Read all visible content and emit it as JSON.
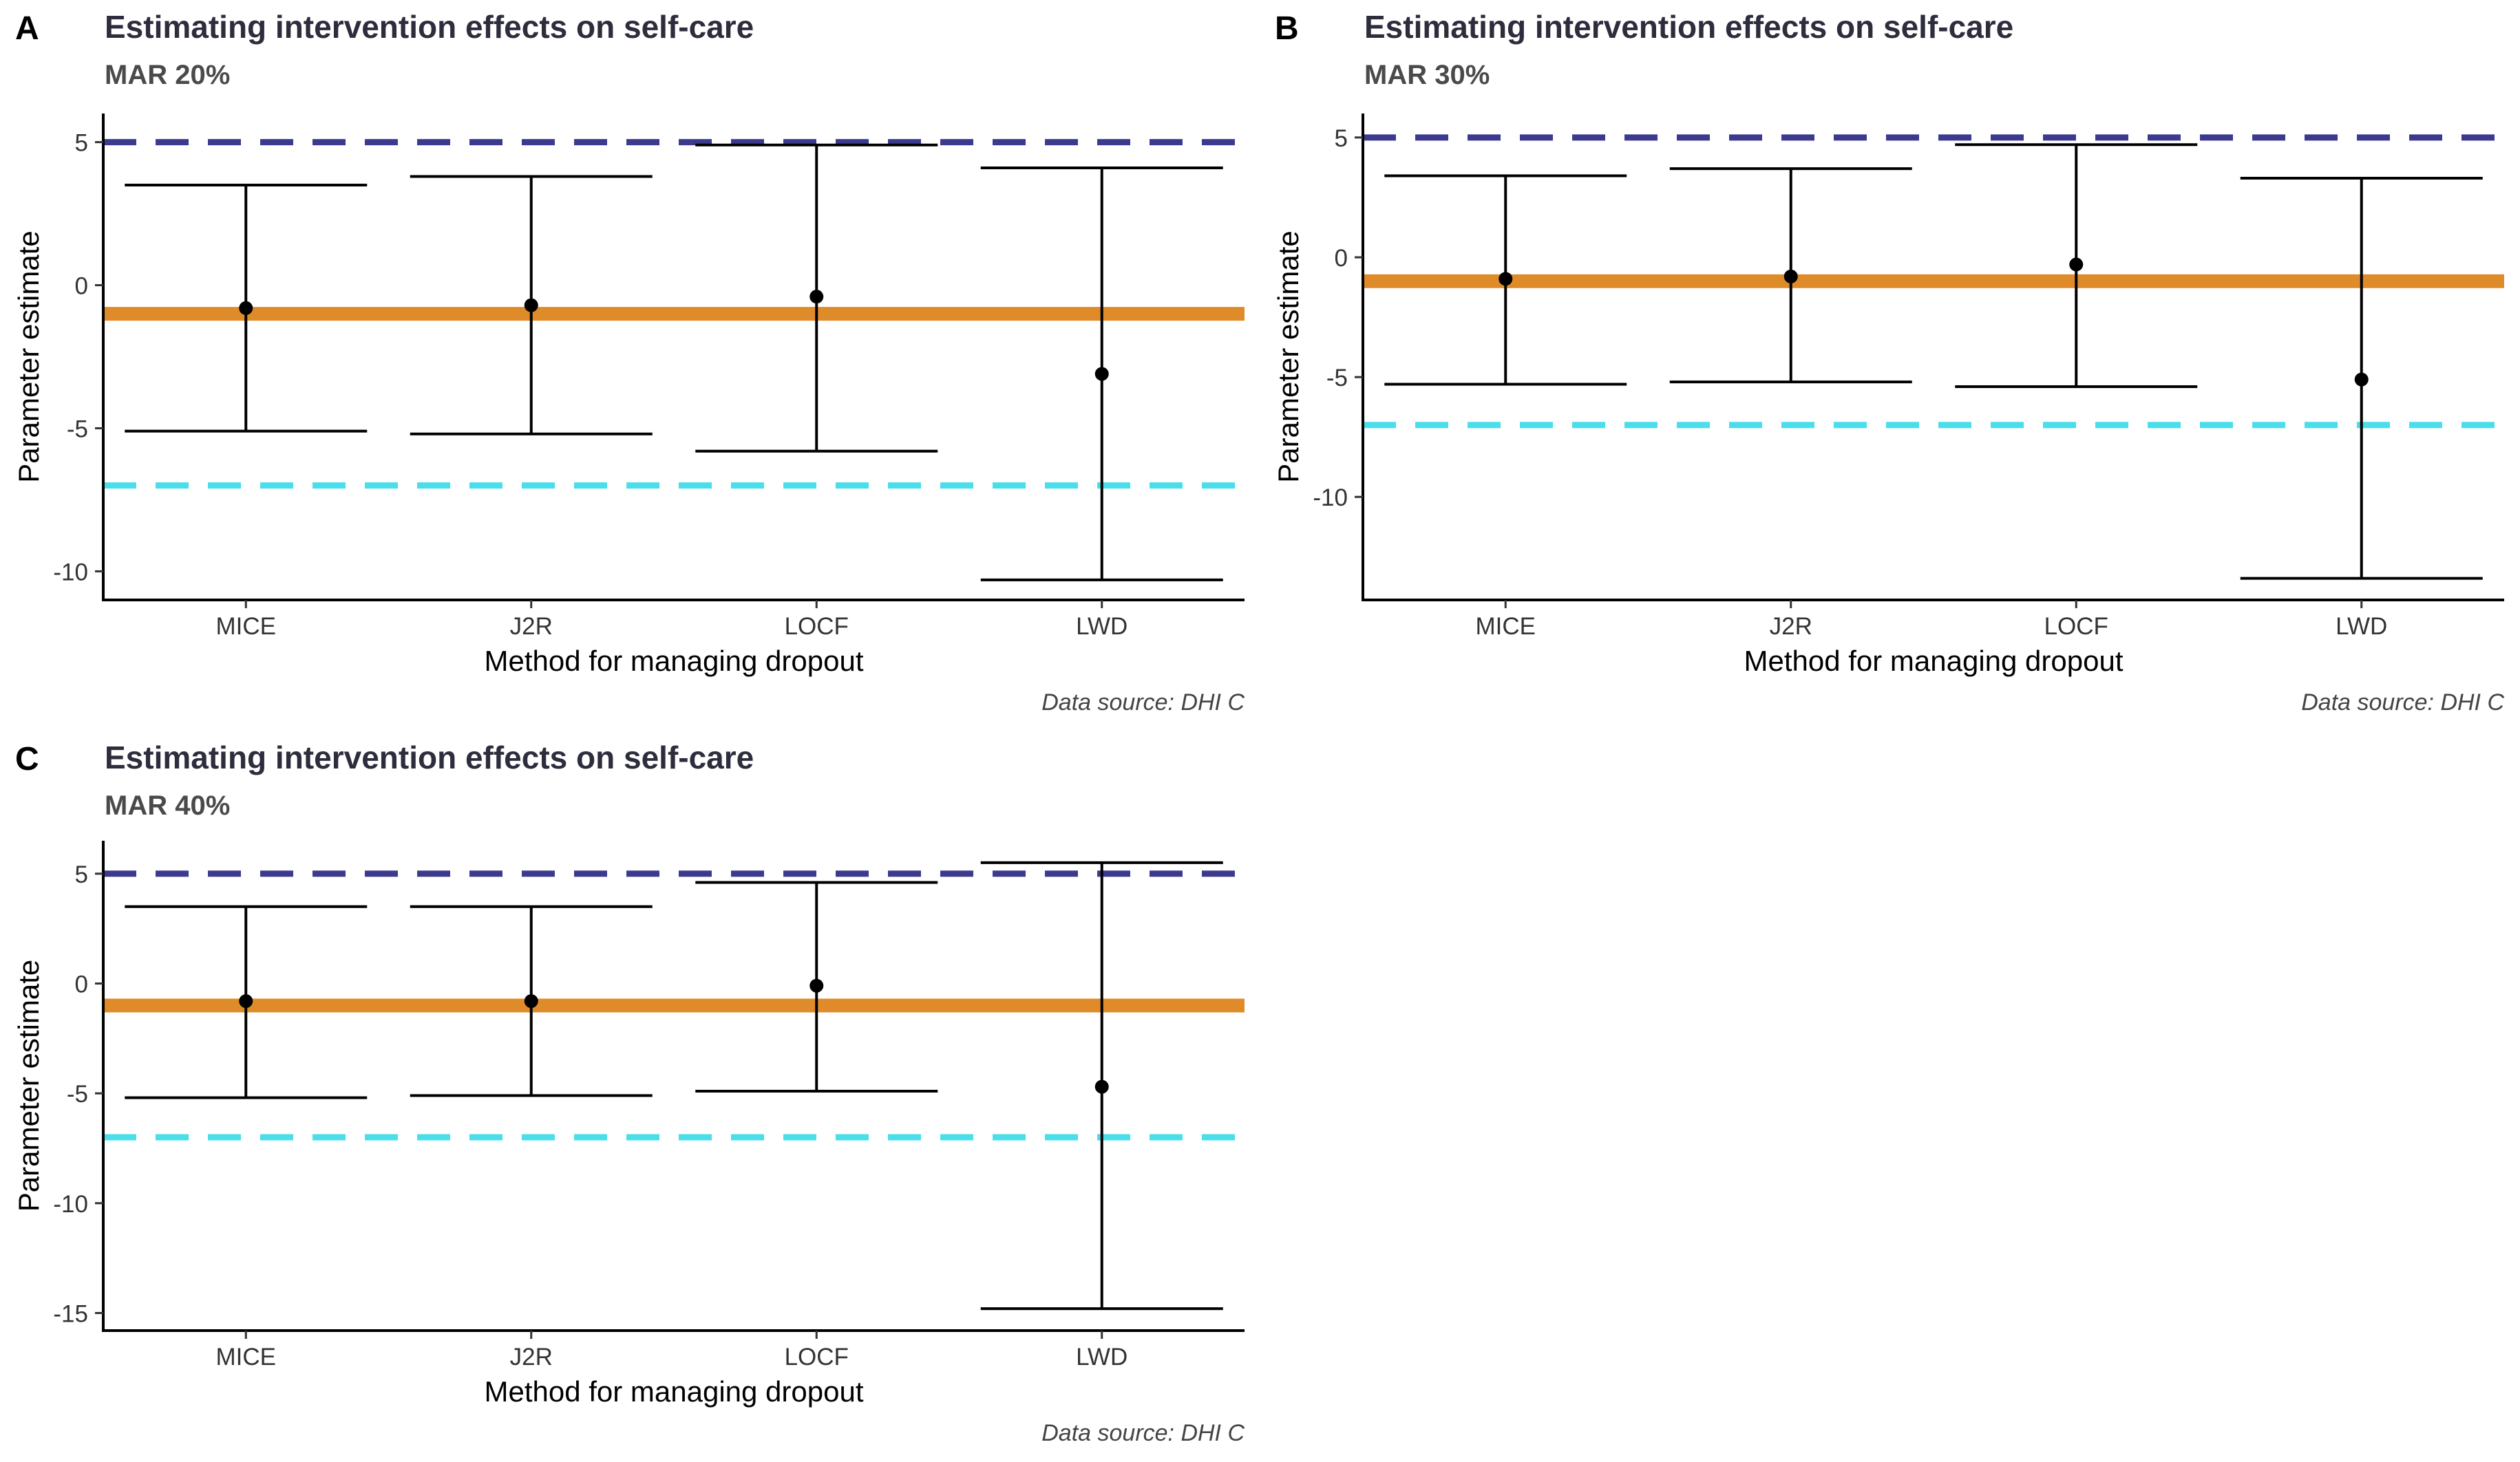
{
  "chart_data": [
    {
      "type": "errorbar",
      "panel_label": "A",
      "title": "Estimating intervention effects on self-care",
      "subtitle": "MAR 20%",
      "xlabel": "Method for managing dropout",
      "ylabel": "Parameter estimate",
      "caption": "Data source: DHI C",
      "ylim": [
        -11.0,
        6.0
      ],
      "yticks": [
        5,
        0,
        -5,
        -10
      ],
      "ytick_labels": [
        "5",
        "0",
        "-5",
        "-10"
      ],
      "categories": [
        "MICE",
        "J2R",
        "LOCF",
        "LWD"
      ],
      "points": [
        {
          "category": "MICE",
          "estimate": -0.8,
          "lower": -5.1,
          "upper": 3.5
        },
        {
          "category": "J2R",
          "estimate": -0.7,
          "lower": -5.2,
          "upper": 3.8
        },
        {
          "category": "LOCF",
          "estimate": -0.4,
          "lower": -5.8,
          "upper": 4.9
        },
        {
          "category": "LWD",
          "estimate": -3.1,
          "lower": -10.3,
          "upper": 4.1
        }
      ],
      "reference_lines": {
        "orange": -1.0,
        "navy": 5.0,
        "cyan": -7.0
      }
    },
    {
      "type": "errorbar",
      "panel_label": "B",
      "title": "Estimating intervention effects on self-care",
      "subtitle": "MAR 30%",
      "xlabel": "Method for managing dropout",
      "ylabel": "Parameter estimate",
      "caption": "Data source: DHI C",
      "ylim": [
        -14.3,
        6.0
      ],
      "yticks": [
        5,
        0,
        -5,
        -10
      ],
      "ytick_labels": [
        "5",
        "0",
        "-5",
        "-10"
      ],
      "categories": [
        "MICE",
        "J2R",
        "LOCF",
        "LWD"
      ],
      "points": [
        {
          "category": "MICE",
          "estimate": -0.9,
          "lower": -5.3,
          "upper": 3.4
        },
        {
          "category": "J2R",
          "estimate": -0.8,
          "lower": -5.2,
          "upper": 3.7
        },
        {
          "category": "LOCF",
          "estimate": -0.3,
          "lower": -5.4,
          "upper": 4.7
        },
        {
          "category": "LWD",
          "estimate": -5.1,
          "lower": -13.4,
          "upper": 3.3
        }
      ],
      "reference_lines": {
        "orange": -1.0,
        "navy": 5.0,
        "cyan": -7.0
      }
    },
    {
      "type": "errorbar",
      "panel_label": "C",
      "title": "Estimating intervention effects on self-care",
      "subtitle": "MAR 40%",
      "xlabel": "Method for managing dropout",
      "ylabel": "Parameter estimate",
      "caption": "Data source: DHI C",
      "ylim": [
        -15.8,
        6.5
      ],
      "yticks": [
        5,
        0,
        -5,
        -10,
        -15
      ],
      "ytick_labels": [
        "5",
        "0",
        "-5",
        "-10",
        "-15"
      ],
      "categories": [
        "MICE",
        "J2R",
        "LOCF",
        "LWD"
      ],
      "points": [
        {
          "category": "MICE",
          "estimate": -0.8,
          "lower": -5.2,
          "upper": 3.5
        },
        {
          "category": "J2R",
          "estimate": -0.8,
          "lower": -5.1,
          "upper": 3.5
        },
        {
          "category": "LOCF",
          "estimate": -0.1,
          "lower": -4.9,
          "upper": 4.6
        },
        {
          "category": "LWD",
          "estimate": -4.7,
          "lower": -14.8,
          "upper": 5.5
        }
      ],
      "reference_lines": {
        "orange": -1.0,
        "navy": 5.0,
        "cyan": -7.0
      }
    }
  ],
  "colors": {
    "orange": "#E08B2A",
    "navy": "#3B3A8F",
    "cyan": "#4ADEEA",
    "ink": "#000000",
    "title": "#2D2D3D",
    "subtitle": "#4A4A4A",
    "caption": "#444444",
    "tick": "#333333"
  }
}
